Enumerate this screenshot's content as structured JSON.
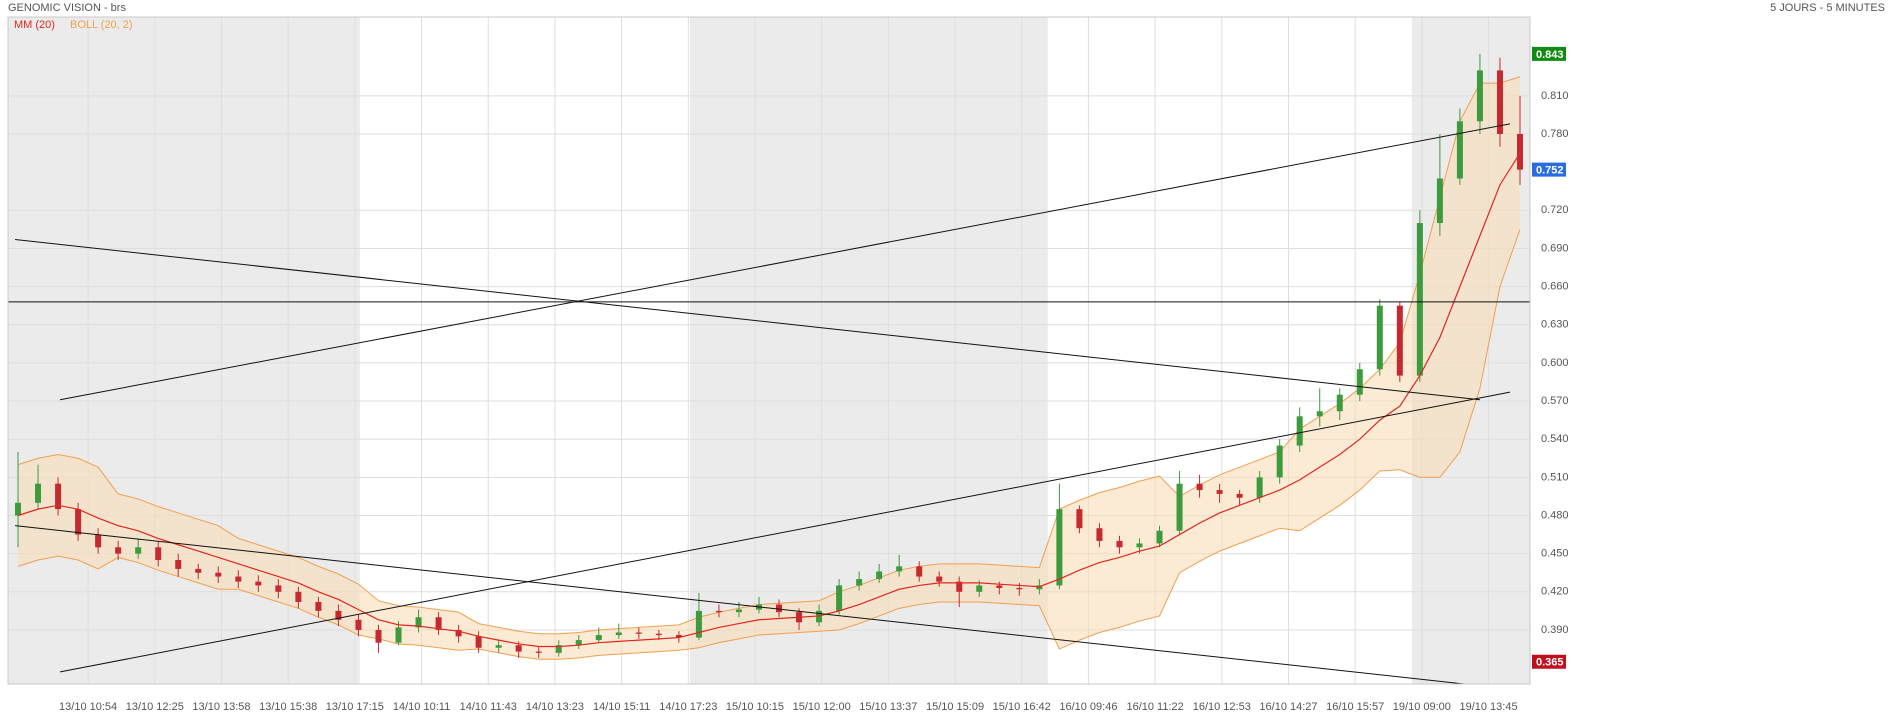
{
  "chart_data": {
    "type": "candlestick",
    "title": "GENOMIC VISION - brs",
    "subtitle": "5 JOURS - 5 MINUTES",
    "xlim": [
      -0.5,
      75.5
    ],
    "ylim": [
      0.3475,
      0.872
    ],
    "yticks": [
      {
        "value": 0.39,
        "label": "0.390"
      },
      {
        "value": 0.42,
        "label": "0.420"
      },
      {
        "value": 0.45,
        "label": "0.450"
      },
      {
        "value": 0.48,
        "label": "0.480"
      },
      {
        "value": 0.51,
        "label": "0.510"
      },
      {
        "value": 0.54,
        "label": "0.540"
      },
      {
        "value": 0.57,
        "label": "0.570"
      },
      {
        "value": 0.6,
        "label": "0.600"
      },
      {
        "value": 0.63,
        "label": "0.630"
      },
      {
        "value": 0.66,
        "label": "0.660"
      },
      {
        "value": 0.69,
        "label": "0.690"
      },
      {
        "value": 0.72,
        "label": "0.720"
      },
      {
        "value": 0.78,
        "label": "0.780"
      },
      {
        "value": 0.81,
        "label": "0.810"
      }
    ],
    "xticks": [
      {
        "value": 3.5,
        "label": "13/10 10:54"
      },
      {
        "value": 6.83,
        "label": "13/10 12:25"
      },
      {
        "value": 10.16,
        "label": "13/10 13:58"
      },
      {
        "value": 13.49,
        "label": "13/10 15:38"
      },
      {
        "value": 16.82,
        "label": "13/10 17:15"
      },
      {
        "value": 20.15,
        "label": "14/10 10:11"
      },
      {
        "value": 23.48,
        "label": "14/10 11:43"
      },
      {
        "value": 26.81,
        "label": "14/10 13:23"
      },
      {
        "value": 30.14,
        "label": "14/10 15:11"
      },
      {
        "value": 33.47,
        "label": "14/10 17:23"
      },
      {
        "value": 36.8,
        "label": "15/10 10:15"
      },
      {
        "value": 40.13,
        "label": "15/10 12:00"
      },
      {
        "value": 43.46,
        "label": "15/10 13:37"
      },
      {
        "value": 46.79,
        "label": "15/10 15:09"
      },
      {
        "value": 50.12,
        "label": "15/10 16:42"
      },
      {
        "value": 53.45,
        "label": "16/10 09:46"
      },
      {
        "value": 56.78,
        "label": "16/10 11:22"
      },
      {
        "value": 60.11,
        "label": "16/10 12:53"
      },
      {
        "value": 63.44,
        "label": "16/10 14:27"
      },
      {
        "value": 66.77,
        "label": "16/10 15:57"
      },
      {
        "value": 70.1,
        "label": "19/10 09:00"
      },
      {
        "value": 73.43,
        "label": "19/10 13:45"
      }
    ],
    "grid": true,
    "shaded": [
      [
        -0.5,
        17.07
      ],
      [
        33.55,
        51.42
      ],
      [
        69.6,
        75.5
      ]
    ],
    "shade_color": "#ebebeb",
    "up_color": "#3d9a3d",
    "down_color": "#c62a30",
    "open": [
      0.48,
      0.49,
      0.505,
      0.485,
      0.465,
      0.455,
      0.45,
      0.455,
      0.445,
      0.438,
      0.435,
      0.432,
      0.428,
      0.425,
      0.42,
      0.412,
      0.405,
      0.398,
      0.39,
      0.38,
      0.392,
      0.4,
      0.39,
      0.385,
      0.376,
      0.378,
      0.373,
      0.372,
      0.378,
      0.382,
      0.386,
      0.388,
      0.387,
      0.386,
      0.384,
      0.405,
      0.404,
      0.406,
      0.41,
      0.404,
      0.396,
      0.405,
      0.425,
      0.43,
      0.436,
      0.44,
      0.432,
      0.428,
      0.42,
      0.425,
      0.423,
      0.422,
      0.425,
      0.485,
      0.47,
      0.46,
      0.455,
      0.458,
      0.468,
      0.505,
      0.5,
      0.497,
      0.494,
      0.51,
      0.535,
      0.558,
      0.562,
      0.575,
      0.595,
      0.645,
      0.59,
      0.71,
      0.745,
      0.79,
      0.83,
      0.78
    ],
    "high": [
      0.53,
      0.52,
      0.51,
      0.49,
      0.47,
      0.46,
      0.462,
      0.46,
      0.45,
      0.442,
      0.44,
      0.437,
      0.433,
      0.43,
      0.424,
      0.416,
      0.41,
      0.402,
      0.394,
      0.397,
      0.406,
      0.404,
      0.394,
      0.389,
      0.382,
      0.381,
      0.377,
      0.382,
      0.386,
      0.392,
      0.395,
      0.392,
      0.39,
      0.389,
      0.419,
      0.41,
      0.412,
      0.416,
      0.414,
      0.407,
      0.41,
      0.43,
      0.436,
      0.442,
      0.449,
      0.444,
      0.436,
      0.432,
      0.429,
      0.428,
      0.427,
      0.43,
      0.505,
      0.488,
      0.474,
      0.464,
      0.462,
      0.472,
      0.515,
      0.512,
      0.505,
      0.5,
      0.515,
      0.54,
      0.565,
      0.58,
      0.58,
      0.6,
      0.65,
      0.648,
      0.72,
      0.78,
      0.8,
      0.843,
      0.84,
      0.81
    ],
    "low": [
      0.455,
      0.485,
      0.48,
      0.46,
      0.45,
      0.445,
      0.446,
      0.44,
      0.432,
      0.43,
      0.427,
      0.423,
      0.42,
      0.415,
      0.407,
      0.4,
      0.393,
      0.385,
      0.372,
      0.378,
      0.388,
      0.386,
      0.38,
      0.372,
      0.372,
      0.368,
      0.368,
      0.369,
      0.375,
      0.38,
      0.383,
      0.383,
      0.382,
      0.38,
      0.382,
      0.4,
      0.4,
      0.403,
      0.4,
      0.39,
      0.393,
      0.402,
      0.421,
      0.427,
      0.432,
      0.428,
      0.424,
      0.408,
      0.416,
      0.418,
      0.417,
      0.418,
      0.422,
      0.466,
      0.455,
      0.45,
      0.45,
      0.455,
      0.465,
      0.494,
      0.49,
      0.488,
      0.49,
      0.505,
      0.53,
      0.55,
      0.555,
      0.57,
      0.59,
      0.585,
      0.585,
      0.7,
      0.74,
      0.78,
      0.77,
      0.74
    ],
    "close": [
      0.49,
      0.505,
      0.485,
      0.465,
      0.455,
      0.45,
      0.455,
      0.445,
      0.438,
      0.435,
      0.432,
      0.428,
      0.425,
      0.42,
      0.412,
      0.405,
      0.398,
      0.39,
      0.38,
      0.392,
      0.4,
      0.39,
      0.385,
      0.376,
      0.378,
      0.373,
      0.372,
      0.378,
      0.382,
      0.386,
      0.388,
      0.387,
      0.386,
      0.384,
      0.405,
      0.404,
      0.406,
      0.41,
      0.404,
      0.396,
      0.405,
      0.425,
      0.43,
      0.436,
      0.44,
      0.432,
      0.428,
      0.42,
      0.425,
      0.423,
      0.422,
      0.425,
      0.485,
      0.47,
      0.46,
      0.455,
      0.458,
      0.468,
      0.505,
      0.5,
      0.497,
      0.494,
      0.51,
      0.535,
      0.558,
      0.562,
      0.575,
      0.595,
      0.645,
      0.59,
      0.71,
      0.745,
      0.79,
      0.83,
      0.78,
      0.752
    ],
    "overlays": [
      {
        "name": "MM (20)",
        "color": "#e0281e",
        "values": [
          0.48,
          0.485,
          0.488,
          0.485,
          0.478,
          0.472,
          0.468,
          0.462,
          0.457,
          0.452,
          0.447,
          0.442,
          0.437,
          0.432,
          0.427,
          0.42,
          0.414,
          0.406,
          0.398,
          0.394,
          0.393,
          0.391,
          0.389,
          0.385,
          0.382,
          0.379,
          0.377,
          0.377,
          0.378,
          0.38,
          0.381,
          0.382,
          0.383,
          0.384,
          0.388,
          0.392,
          0.395,
          0.398,
          0.399,
          0.4,
          0.401,
          0.405,
          0.41,
          0.416,
          0.422,
          0.425,
          0.427,
          0.427,
          0.427,
          0.426,
          0.425,
          0.424,
          0.43,
          0.437,
          0.443,
          0.447,
          0.452,
          0.456,
          0.465,
          0.474,
          0.482,
          0.488,
          0.494,
          0.5,
          0.508,
          0.518,
          0.528,
          0.54,
          0.555,
          0.566,
          0.59,
          0.62,
          0.66,
          0.7,
          0.74,
          0.765
        ]
      }
    ],
    "bollinger": {
      "name": "BOLL (20, 2)",
      "color": "#f0a050",
      "fill": "#f8dcb8",
      "upper": [
        0.52,
        0.525,
        0.528,
        0.525,
        0.518,
        0.497,
        0.493,
        0.487,
        0.482,
        0.477,
        0.472,
        0.462,
        0.457,
        0.452,
        0.447,
        0.44,
        0.434,
        0.426,
        0.413,
        0.409,
        0.408,
        0.406,
        0.404,
        0.395,
        0.392,
        0.389,
        0.387,
        0.387,
        0.388,
        0.39,
        0.391,
        0.392,
        0.393,
        0.394,
        0.4,
        0.404,
        0.407,
        0.41,
        0.411,
        0.412,
        0.413,
        0.42,
        0.425,
        0.431,
        0.437,
        0.44,
        0.442,
        0.442,
        0.442,
        0.441,
        0.44,
        0.439,
        0.485,
        0.492,
        0.498,
        0.502,
        0.507,
        0.511,
        0.495,
        0.504,
        0.512,
        0.518,
        0.524,
        0.53,
        0.548,
        0.558,
        0.568,
        0.58,
        0.595,
        0.616,
        0.67,
        0.73,
        0.79,
        0.82,
        0.82,
        0.825
      ],
      "lower": [
        0.44,
        0.445,
        0.448,
        0.445,
        0.438,
        0.447,
        0.443,
        0.437,
        0.432,
        0.427,
        0.422,
        0.422,
        0.417,
        0.412,
        0.407,
        0.4,
        0.394,
        0.386,
        0.383,
        0.379,
        0.378,
        0.376,
        0.374,
        0.375,
        0.372,
        0.369,
        0.367,
        0.367,
        0.368,
        0.37,
        0.371,
        0.372,
        0.373,
        0.374,
        0.376,
        0.38,
        0.383,
        0.386,
        0.387,
        0.388,
        0.389,
        0.39,
        0.395,
        0.401,
        0.407,
        0.41,
        0.412,
        0.412,
        0.412,
        0.411,
        0.41,
        0.409,
        0.375,
        0.382,
        0.388,
        0.392,
        0.397,
        0.401,
        0.435,
        0.444,
        0.452,
        0.458,
        0.464,
        0.47,
        0.468,
        0.478,
        0.488,
        0.5,
        0.515,
        0.516,
        0.51,
        0.51,
        0.53,
        0.58,
        0.66,
        0.705
      ]
    },
    "trend_lines": [
      {
        "x": [
          2.1,
          74.5
        ],
        "y": [
          0.571,
          0.788
        ]
      },
      {
        "x": [
          -0.15,
          73
        ],
        "y": [
          0.697,
          0.571
        ]
      },
      {
        "x": [
          -0.15,
          72.5
        ],
        "y": [
          0.472,
          0.347
        ]
      },
      {
        "x": [
          2.1,
          74.5
        ],
        "y": [
          0.357,
          0.577
        ]
      }
    ],
    "hlines": [
      0.648
    ],
    "line_color": "#111111",
    "price_markers": [
      {
        "value": 0.843,
        "color": "#138a13"
      },
      {
        "value": 0.752,
        "color": "#2a6be0"
      },
      {
        "value": 0.365,
        "color": "#c0101e"
      }
    ]
  }
}
